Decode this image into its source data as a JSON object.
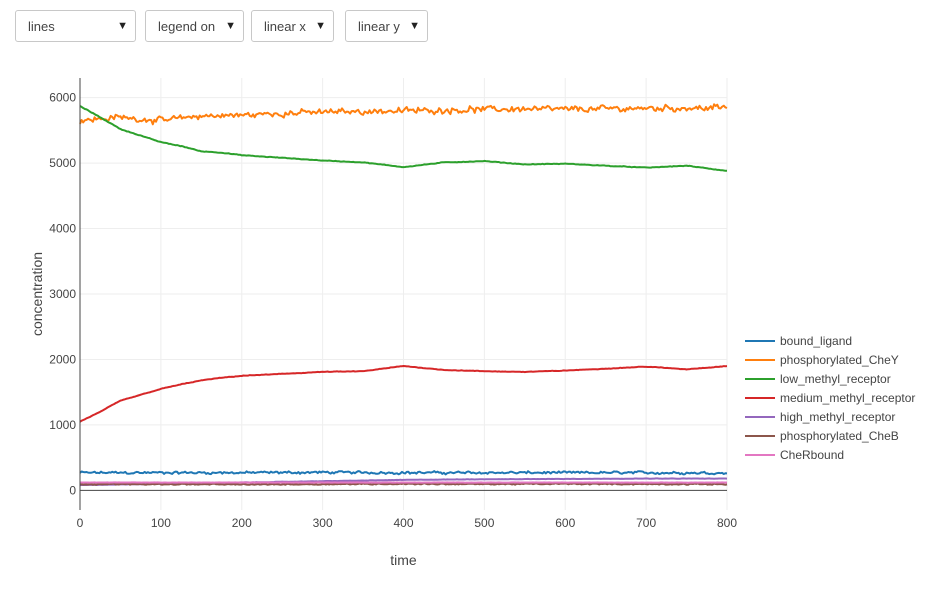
{
  "controls": {
    "mode": "lines",
    "legend": "legend on",
    "xscale": "linear x",
    "yscale": "linear y"
  },
  "chart_data": {
    "type": "line",
    "xlabel": "time",
    "ylabel": "concentration",
    "xlim": [
      0,
      800
    ],
    "ylim": [
      -300,
      6300
    ],
    "xticks": [
      0,
      100,
      200,
      300,
      400,
      500,
      600,
      700,
      800
    ],
    "yticks": [
      0,
      1000,
      2000,
      3000,
      4000,
      5000,
      6000
    ],
    "grid": true,
    "legend_position": "right",
    "series": [
      {
        "name": "bound_ligand",
        "color": "#1f77b4",
        "noise": 25,
        "x": [
          0,
          100,
          200,
          300,
          400,
          500,
          600,
          700,
          800
        ],
        "y": [
          270,
          270,
          270,
          275,
          270,
          270,
          270,
          270,
          265
        ]
      },
      {
        "name": "phosphorylated_CheY",
        "color": "#ff7f0e",
        "noise": 60,
        "x": [
          0,
          50,
          100,
          150,
          200,
          250,
          300,
          350,
          400,
          450,
          500,
          550,
          600,
          650,
          700,
          750,
          800
        ],
        "y": [
          5650,
          5700,
          5650,
          5720,
          5730,
          5760,
          5780,
          5790,
          5800,
          5810,
          5820,
          5830,
          5820,
          5830,
          5840,
          5840,
          5850
        ]
      },
      {
        "name": "low_methyl_receptor",
        "color": "#2ca02c",
        "noise": 6,
        "x": [
          0,
          25,
          50,
          75,
          100,
          125,
          150,
          175,
          200,
          250,
          300,
          350,
          400,
          450,
          500,
          550,
          600,
          650,
          700,
          750,
          800
        ],
        "y": [
          5870,
          5700,
          5520,
          5420,
          5320,
          5260,
          5180,
          5160,
          5120,
          5080,
          5040,
          5010,
          4940,
          5010,
          5030,
          4980,
          4990,
          4960,
          4930,
          4960,
          4880
        ]
      },
      {
        "name": "medium_methyl_receptor",
        "color": "#d62728",
        "noise": 5,
        "x": [
          0,
          25,
          50,
          75,
          100,
          125,
          150,
          175,
          200,
          250,
          300,
          350,
          400,
          450,
          500,
          550,
          600,
          650,
          700,
          750,
          800
        ],
        "y": [
          1050,
          1200,
          1370,
          1460,
          1550,
          1620,
          1680,
          1720,
          1750,
          1780,
          1810,
          1820,
          1900,
          1840,
          1820,
          1810,
          1830,
          1860,
          1890,
          1850,
          1900
        ]
      },
      {
        "name": "high_methyl_receptor",
        "color": "#9467bd",
        "noise": 3,
        "x": [
          0,
          100,
          200,
          300,
          400,
          500,
          600,
          700,
          800
        ],
        "y": [
          80,
          100,
          120,
          140,
          160,
          170,
          175,
          180,
          180
        ]
      },
      {
        "name": "phosphorylated_CheB",
        "color": "#8c564b",
        "noise": 12,
        "x": [
          0,
          100,
          200,
          300,
          400,
          500,
          600,
          700,
          800
        ],
        "y": [
          95,
          95,
          90,
          95,
          100,
          95,
          100,
          95,
          95
        ]
      },
      {
        "name": "CheRbound",
        "color": "#e377c2",
        "noise": 2,
        "x": [
          0,
          100,
          200,
          300,
          400,
          500,
          600,
          700,
          800
        ],
        "y": [
          120,
          120,
          120,
          120,
          120,
          120,
          120,
          120,
          120
        ]
      }
    ]
  }
}
